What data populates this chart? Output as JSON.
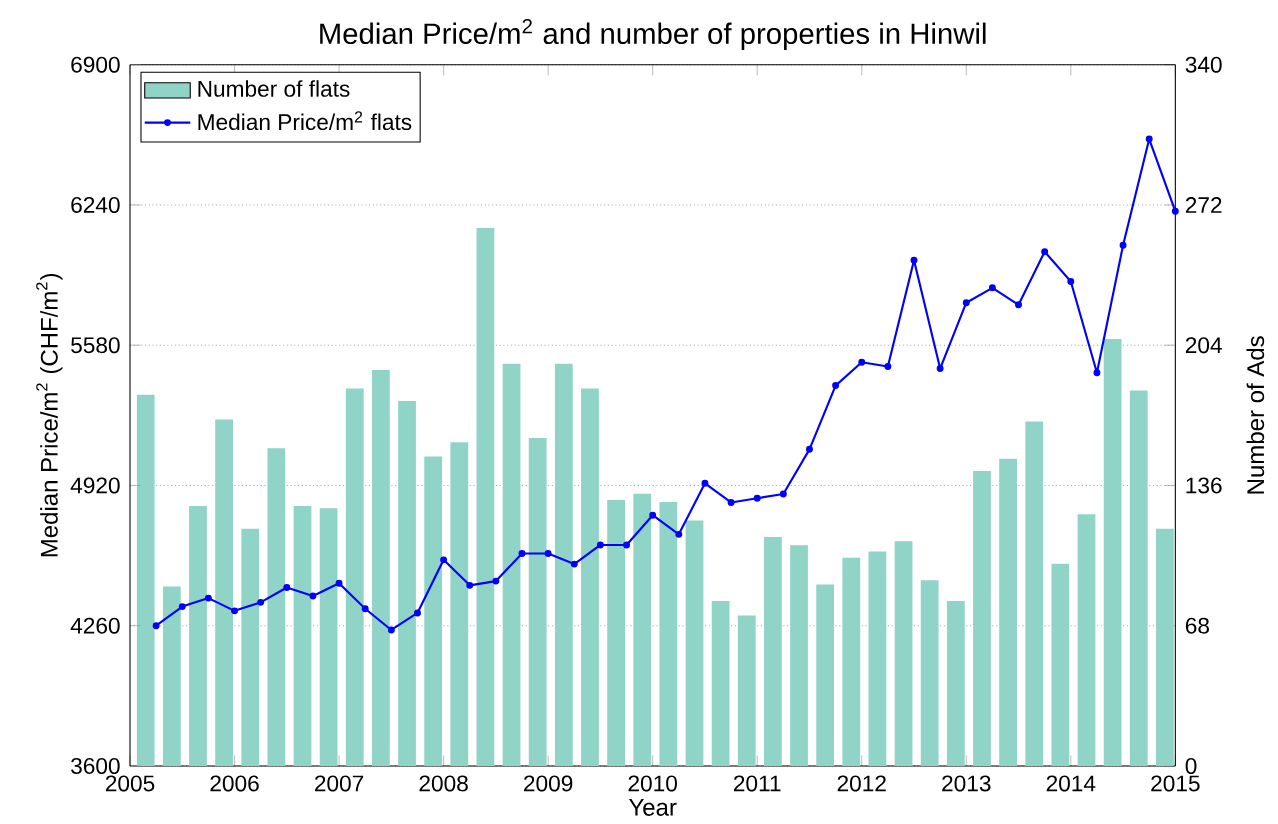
{
  "chart_data": {
    "type": "bar",
    "title": "Median Price/m$^{2}$ and number of properties in Hinwil",
    "xlabel": "Year",
    "ylabel": "Median Price/m$^{2}$ (CHF/m$^{2}$)",
    "y2label": "Number of Ads",
    "xlim": [
      2005,
      2015
    ],
    "xticks": [
      2005,
      2006,
      2007,
      2008,
      2009,
      2010,
      2011,
      2012,
      2013,
      2014,
      2015
    ],
    "ylim": [
      3600,
      6900
    ],
    "yticks": [
      3600,
      4260,
      4920,
      5580,
      6240,
      6900
    ],
    "y2lim": [
      0,
      340
    ],
    "y2ticks": [
      0,
      68,
      136,
      204,
      272,
      340
    ],
    "grid": "y",
    "legend": "top left",
    "series": [
      {
        "name": "Number of flats",
        "axis": "y2",
        "color": "#8fd4c7",
        "x": [
          2005.15,
          2005.4,
          2005.65,
          2005.9,
          2006.15,
          2006.4,
          2006.65,
          2006.9,
          2007.15,
          2007.4,
          2007.65,
          2007.9,
          2008.15,
          2008.4,
          2008.65,
          2008.9,
          2009.15,
          2009.4,
          2009.65,
          2009.9,
          2010.15,
          2010.4,
          2010.65,
          2010.9,
          2011.15,
          2011.4,
          2011.65,
          2011.9,
          2012.15,
          2012.4,
          2012.65,
          2012.9,
          2013.15,
          2013.4,
          2013.65,
          2013.9,
          2014.15,
          2014.4,
          2014.65,
          2014.9
        ],
        "values": [
          180,
          87,
          126,
          168,
          115,
          154,
          126,
          125,
          183,
          192,
          177,
          150,
          157,
          261,
          195,
          159,
          195,
          183,
          129,
          132,
          128,
          119,
          80,
          73,
          111,
          107,
          88,
          101,
          104,
          109,
          90,
          80,
          143,
          149,
          167,
          98,
          122,
          207,
          182,
          115
        ]
      },
      {
        "name": "Median Price/m$^{2}$ flats",
        "type": "line",
        "axis": "y",
        "color": "#0000ff",
        "marker": "circle",
        "x": [
          2005.25,
          2005.5,
          2005.75,
          2006,
          2006.25,
          2006.5,
          2006.75,
          2007,
          2007.25,
          2007.5,
          2007.75,
          2008,
          2008.25,
          2008.5,
          2008.75,
          2009,
          2009.25,
          2009.5,
          2009.75,
          2010,
          2010.25,
          2010.5,
          2010.75,
          2011,
          2011.25,
          2011.5,
          2011.75,
          2012,
          2012.25,
          2012.5,
          2012.75,
          2013,
          2013.25,
          2013.5,
          2013.75,
          2014,
          2014.25,
          2014.5,
          2014.75,
          2015
        ],
        "values": [
          4260,
          4350,
          4390,
          4330,
          4370,
          4440,
          4400,
          4460,
          4340,
          4240,
          4320,
          4570,
          4450,
          4470,
          4600,
          4600,
          4550,
          4640,
          4640,
          4780,
          4690,
          4930,
          4840,
          4860,
          4880,
          5090,
          5390,
          5500,
          5480,
          5980,
          5470,
          5780,
          5850,
          5770,
          6020,
          5880,
          5450,
          6050,
          6550,
          6210
        ]
      }
    ]
  }
}
